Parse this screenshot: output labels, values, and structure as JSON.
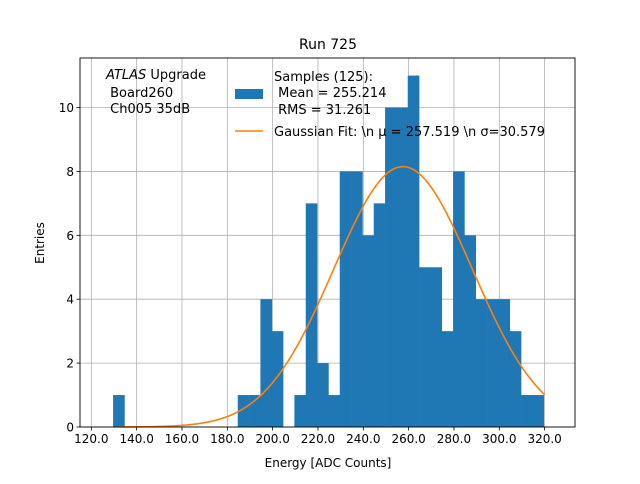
{
  "chart_data": {
    "type": "bar",
    "title": "Run 725",
    "xlabel": "Energy [ADC Counts]",
    "ylabel": "Entries",
    "xlim": [
      115.0,
      333.4
    ],
    "ylim": [
      0,
      11.55
    ],
    "xticks": [
      120,
      140,
      160,
      180,
      200,
      220,
      240,
      260,
      280,
      300,
      320
    ],
    "xtick_labels": [
      "120.0",
      "140.0",
      "160.0",
      "180.0",
      "200.0",
      "220.0",
      "240.0",
      "260.0",
      "280.0",
      "300.0",
      "320.0"
    ],
    "yticks": [
      0,
      2,
      4,
      6,
      8,
      10
    ],
    "ytick_labels": [
      "0",
      "2",
      "4",
      "6",
      "8",
      "10"
    ],
    "grid": true,
    "bin_start": 129.6,
    "bin_width": 5,
    "counts": [
      1,
      0,
      0,
      0,
      0,
      0,
      0,
      0,
      0,
      0,
      0,
      1,
      1,
      4,
      3,
      0,
      1,
      7,
      2,
      1,
      8,
      8,
      6,
      7,
      10,
      10,
      11,
      5,
      5,
      3,
      8,
      6,
      4,
      4,
      4,
      3,
      1,
      1
    ],
    "bar_color": "#1f77b4",
    "fit": {
      "mu": 257.519,
      "sigma": 30.579,
      "amplitude": 8.15,
      "x_range": [
        132,
        320
      ],
      "color": "#ff7f0e"
    },
    "annotation": {
      "italic": "ATLAS",
      "rest": " Upgrade",
      "line2": " Board260",
      "line3": " Ch005 35dB"
    },
    "legend": {
      "placement": "top-center",
      "entries": [
        {
          "lines": [
            "Samples (125):",
            " Mean = 255.214",
            " RMS = 31.261"
          ]
        },
        {
          "label": "Gaussian Fit: \\n μ = 257.519 \\n σ=30.579"
        }
      ]
    }
  }
}
